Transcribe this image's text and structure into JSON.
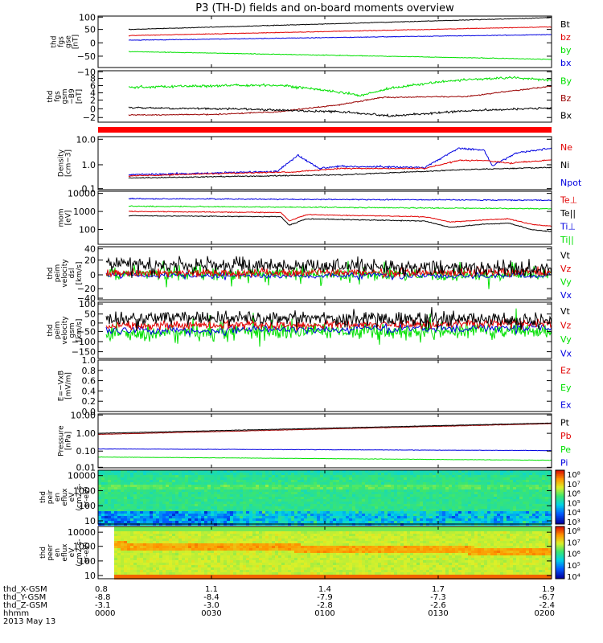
{
  "title": "P3 (TH-D) fields and on-board moments overview",
  "time_axis": {
    "labels": [
      "0000",
      "0030",
      "0100",
      "0130",
      "0200"
    ],
    "ephem_rows": [
      {
        "name": "thd_X-GSM",
        "values": [
          "0.8",
          "1.1",
          "1.4",
          "1.7",
          "1.9"
        ]
      },
      {
        "name": "thd_Y-GSM",
        "values": [
          "-8.8",
          "-8.4",
          "-7.9",
          "-7.3",
          "-6.7"
        ]
      },
      {
        "name": "thd_Z-GSM",
        "values": [
          "-3.1",
          "-3.0",
          "-2.8",
          "-2.6",
          "-2.4"
        ]
      },
      {
        "name": "hhmm",
        "values": [
          "0000",
          "0030",
          "0100",
          "0130",
          "0200"
        ]
      }
    ],
    "date": "2013 May 13"
  },
  "colors": {
    "black": "#000000",
    "red": "#e00000",
    "green": "#00e000",
    "blue": "#0000e0",
    "darkred": "#990000"
  },
  "panels": [
    {
      "id": "fgs-gse",
      "ylabel": [
        "thd",
        "fgs",
        "gse",
        "[nT]"
      ],
      "ticks": [
        "100",
        "50",
        "0",
        "−50"
      ],
      "legend": [
        {
          "text": "Bt",
          "color": "black"
        },
        {
          "text": "bz",
          "color": "red"
        },
        {
          "text": "by",
          "color": "green"
        },
        {
          "text": "bx",
          "color": "blue"
        }
      ]
    },
    {
      "id": "fgs-gsm",
      "ylabel": [
        "thd",
        "fgs",
        "gsm",
        "−B9",
        "[nT]"
      ],
      "ticks": [
        "−10",
        "8",
        "6",
        "4",
        "2",
        "0",
        "−2"
      ],
      "legend": [
        {
          "text": "By",
          "color": "green"
        },
        {
          "text": "Bz",
          "color": "darkred"
        },
        {
          "text": "Bx",
          "color": "black"
        }
      ]
    },
    {
      "id": "density",
      "ylabel": [
        "Density",
        "[cm−3]"
      ],
      "ticks": [
        "10.0",
        "1.0",
        "0.1"
      ],
      "legend": [
        {
          "text": "Ne",
          "color": "red"
        },
        {
          "text": "Ni",
          "color": "black"
        },
        {
          "text": "Npot",
          "color": "blue"
        }
      ]
    },
    {
      "id": "temperature",
      "ylabel": [
        "mom",
        "[eV]"
      ],
      "ticks": [
        "10000",
        "1000",
        "100"
      ],
      "legend": [
        {
          "text": "Te⊥",
          "color": "red"
        },
        {
          "text": "Te||",
          "color": "black"
        },
        {
          "text": "Ti⊥",
          "color": "blue"
        },
        {
          "text": "Ti||",
          "color": "green"
        }
      ]
    },
    {
      "id": "peim-velocity-dsl",
      "ylabel": [
        "thd",
        "peim",
        "velocity",
        "dsl",
        "[km/s]"
      ],
      "ticks": [
        "40",
        "20",
        "0",
        "−20",
        "−40"
      ],
      "legend": [
        {
          "text": "Vt",
          "color": "black"
        },
        {
          "text": "Vz",
          "color": "red"
        },
        {
          "text": "Vy",
          "color": "green"
        },
        {
          "text": "Vx",
          "color": "blue"
        }
      ]
    },
    {
      "id": "peim-velocity-gsm",
      "ylabel": [
        "thd",
        "peim",
        "velocity",
        "gsm",
        "[km/s]"
      ],
      "ticks": [
        "100",
        "50",
        "0",
        "−50",
        "−100",
        "−150"
      ],
      "legend": [
        {
          "text": "Vt",
          "color": "black"
        },
        {
          "text": "Vz",
          "color": "red"
        },
        {
          "text": "Vy",
          "color": "green"
        },
        {
          "text": "Vx",
          "color": "blue"
        }
      ]
    },
    {
      "id": "efield",
      "ylabel": [
        "E=−VxB",
        "[mV/m]"
      ],
      "ticks": [
        "1.0",
        "0.8",
        "0.6",
        "0.4",
        "0.2",
        "0.0"
      ],
      "legend": [
        {
          "text": "Ez",
          "color": "red"
        },
        {
          "text": "Ey",
          "color": "green"
        },
        {
          "text": "Ex",
          "color": "blue"
        }
      ]
    },
    {
      "id": "pressure",
      "ylabel": [
        "Pressure",
        "[nPa]"
      ],
      "ticks": [
        "10.00",
        "1.00",
        "0.10",
        "0.01"
      ],
      "legend": [
        {
          "text": "Pt",
          "color": "black"
        },
        {
          "text": "Pb",
          "color": "red"
        },
        {
          "text": "Pe",
          "color": "green"
        },
        {
          "text": "Pi",
          "color": "blue"
        }
      ]
    },
    {
      "id": "peir-spec",
      "ylabel": [
        "thd",
        "peir",
        "en",
        "eflux",
        "eV",
        "(cm2-s-",
        "sr-eV)"
      ],
      "ticks": [
        "10000",
        "1000",
        "100",
        "10"
      ],
      "colorbar": [
        "10⁸",
        "10⁷",
        "10⁶",
        "10⁵",
        "10⁴",
        "10³"
      ]
    },
    {
      "id": "peer-spec",
      "ylabel": [
        "thd",
        "peer",
        "en",
        "eflux",
        "eV",
        "(cm2-s-",
        "sr-eV)"
      ],
      "ticks": [
        "10000",
        "1000",
        "100",
        "10"
      ],
      "colorbar": [
        "10⁸",
        "10⁷",
        "10⁶",
        "10⁵",
        "10⁴"
      ]
    }
  ],
  "chart_data": [
    {
      "type": "line",
      "title": "P3 (TH-D) fields and on-board moments overview",
      "x": [
        "0000",
        "0030",
        "0100",
        "0130",
        "0200"
      ],
      "ylabel": "thd fgs gse [nT]",
      "ylim": [
        -75,
        100
      ],
      "series": [
        {
          "name": "Bt",
          "color": "black",
          "values": [
            46,
            57,
            68,
            79,
            90
          ]
        },
        {
          "name": "bz",
          "color": "red",
          "values": [
            28,
            36,
            44,
            52,
            58
          ]
        },
        {
          "name": "bx",
          "color": "blue",
          "values": [
            15,
            19,
            23,
            28,
            33
          ]
        },
        {
          "name": "by",
          "color": "green",
          "values": [
            -30,
            -35,
            -41,
            -48,
            -56
          ]
        }
      ]
    },
    {
      "type": "line",
      "ylabel": "thd fgs gsm [nT]",
      "ylim": [
        -3,
        10
      ],
      "x": [
        "0000",
        "0015",
        "0030",
        "0045",
        "0100",
        "0115",
        "0130",
        "0145",
        "0200"
      ],
      "series": [
        {
          "name": "By",
          "color": "green",
          "values": [
            6.0,
            6.3,
            5.7,
            4.6,
            6.4,
            7.0,
            7.3,
            7.6,
            7.5
          ]
        },
        {
          "name": "Bz",
          "color": "darkred",
          "values": [
            0.2,
            0.5,
            1.0,
            2.0,
            3.2,
            3.6,
            3.6,
            4.4,
            5.2
          ]
        },
        {
          "name": "Bx",
          "color": "black",
          "values": [
            1.4,
            1.2,
            1.0,
            0.6,
            -0.2,
            0.2,
            0.5,
            0.8,
            1.1
          ]
        }
      ]
    },
    {
      "type": "line",
      "ylabel": "Density [cm-3]",
      "yscale": "log",
      "ylim": [
        0.1,
        10
      ],
      "x": [
        "0000",
        "0015",
        "0030",
        "0045",
        "0100",
        "0115",
        "0130",
        "0145",
        "0200"
      ],
      "series": [
        {
          "name": "Npot",
          "color": "blue",
          "values": [
            0.4,
            0.45,
            1.2,
            0.5,
            0.5,
            0.55,
            2.5,
            0.8,
            3.0
          ]
        },
        {
          "name": "Ne",
          "color": "red",
          "values": [
            0.4,
            0.42,
            0.7,
            0.5,
            0.5,
            0.5,
            1.0,
            0.7,
            1.3
          ]
        },
        {
          "name": "Ni",
          "color": "black",
          "values": [
            0.35,
            0.38,
            0.45,
            0.45,
            0.45,
            0.5,
            0.65,
            0.75,
            0.9
          ]
        }
      ]
    },
    {
      "type": "line",
      "ylabel": "mom [eV]",
      "yscale": "log",
      "ylim": [
        50,
        10000
      ],
      "x": [
        "0000",
        "0015",
        "0030",
        "0045",
        "0100",
        "0115",
        "0130",
        "0145",
        "0200"
      ],
      "series": [
        {
          "name": "Ti⊥",
          "color": "blue",
          "values": [
            3800,
            3600,
            3500,
            3400,
            3300,
            3200,
            3000,
            2900,
            2800
          ]
        },
        {
          "name": "Ti||",
          "color": "green",
          "values": [
            2200,
            2100,
            2000,
            2000,
            1900,
            1900,
            1800,
            1700,
            1600
          ]
        },
        {
          "name": "Te⊥",
          "color": "red",
          "values": [
            900,
            850,
            450,
            650,
            600,
            550,
            400,
            400,
            200
          ]
        },
        {
          "name": "Te||",
          "color": "black",
          "values": [
            700,
            650,
            300,
            500,
            480,
            420,
            260,
            280,
            120
          ]
        }
      ]
    },
    {
      "type": "line",
      "ylabel": "thd peim velocity dsl [km/s]",
      "ylim": [
        -40,
        40
      ],
      "x": [
        "0000",
        "0030",
        "0100",
        "0130",
        "0200"
      ],
      "series": [
        {
          "name": "Vt",
          "color": "black",
          "values": [
            15,
            13,
            10,
            9,
            8
          ]
        },
        {
          "name": "Vz",
          "color": "red",
          "values": [
            5,
            4,
            3,
            3,
            2
          ]
        },
        {
          "name": "Vy",
          "color": "green",
          "values": [
            -3,
            -3,
            -2,
            -2,
            -2
          ]
        },
        {
          "name": "Vx",
          "color": "blue",
          "values": [
            1,
            1,
            0,
            0,
            0
          ]
        }
      ]
    },
    {
      "type": "line",
      "ylabel": "thd peim velocity gsm [km/s]",
      "ylim": [
        -150,
        100
      ],
      "x": [
        "0000",
        "0030",
        "0100",
        "0130",
        "0200"
      ],
      "series": [
        {
          "name": "Vt",
          "color": "black",
          "values": [
            50,
            45,
            40,
            35,
            38
          ]
        },
        {
          "name": "Vz",
          "color": "red",
          "values": [
            30,
            25,
            20,
            15,
            18
          ]
        },
        {
          "name": "Vy",
          "color": "green",
          "values": [
            -30,
            -25,
            -20,
            -15,
            -20
          ]
        },
        {
          "name": "Vx",
          "color": "blue",
          "values": [
            5,
            5,
            0,
            0,
            0
          ]
        }
      ]
    },
    {
      "type": "line",
      "ylabel": "E=-VxB [mV/m]",
      "ylim": [
        0,
        1.0
      ],
      "x": [],
      "series": []
    },
    {
      "type": "line",
      "ylabel": "Pressure [nPa]",
      "yscale": "log",
      "ylim": [
        0.01,
        10
      ],
      "x": [
        "0000",
        "0030",
        "0100",
        "0130",
        "0200"
      ],
      "series": [
        {
          "name": "Pt",
          "color": "black",
          "values": [
            0.8,
            1.1,
            1.5,
            2.1,
            2.9
          ]
        },
        {
          "name": "Pb",
          "color": "red",
          "values": [
            0.75,
            1.05,
            1.45,
            2.0,
            2.8
          ]
        },
        {
          "name": "Pi",
          "color": "blue",
          "values": [
            0.12,
            0.12,
            0.11,
            0.11,
            0.11
          ]
        },
        {
          "name": "Pe",
          "color": "green",
          "values": [
            0.05,
            0.045,
            0.04,
            0.035,
            0.03
          ]
        }
      ]
    },
    {
      "type": "heatmap",
      "ylabel": "thd peir en eflux eV (cm2-s-sr-eV)",
      "yscale": "log",
      "ylim": [
        10,
        20000
      ],
      "colorbar_ticks": [
        "10⁸",
        "10⁷",
        "10⁶",
        "10⁵",
        "10⁴",
        "10³"
      ]
    },
    {
      "type": "heatmap",
      "ylabel": "thd peer en eflux eV (cm2-s-sr-eV)",
      "yscale": "log",
      "ylim": [
        7,
        20000
      ],
      "colorbar_ticks": [
        "10⁸",
        "10⁷",
        "10⁶",
        "10⁵",
        "10⁴"
      ]
    }
  ]
}
